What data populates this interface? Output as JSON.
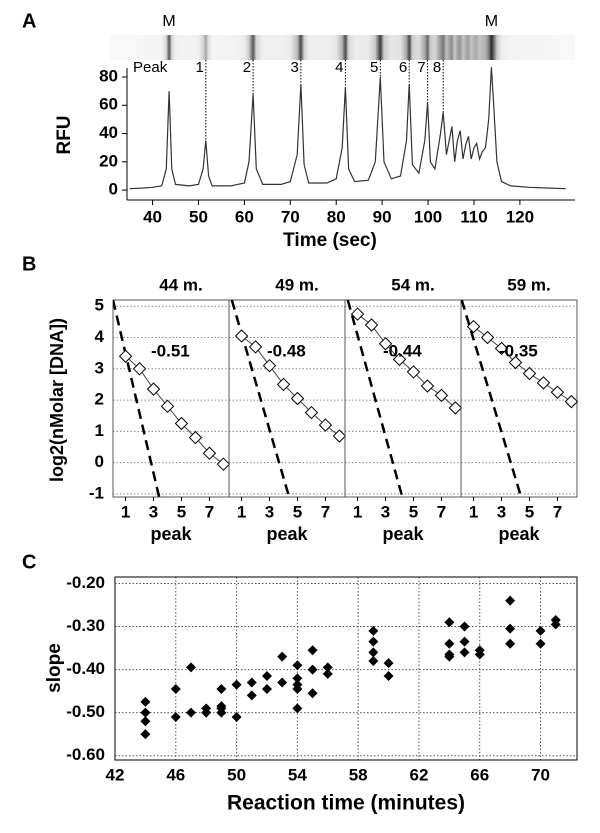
{
  "chart_data": [
    {
      "type": "line",
      "panel_label": "A",
      "xlabel": "Time (sec)",
      "ylabel": "RFU",
      "xlim": [
        34,
        132
      ],
      "xticks": [
        40,
        50,
        60,
        70,
        80,
        90,
        100,
        110,
        120
      ],
      "ylim": [
        -7,
        92
      ],
      "yticks": [
        0,
        20,
        40,
        60,
        80
      ],
      "color": "#333333",
      "x": [
        35,
        38,
        40,
        42,
        43,
        43.6,
        44.2,
        45,
        48,
        50,
        51,
        51.6,
        52.2,
        53,
        57,
        60,
        61,
        61.9,
        62.6,
        64,
        68,
        70,
        71.5,
        72.3,
        73,
        74,
        78,
        80,
        81.3,
        82,
        82.7,
        84,
        87,
        88.5,
        89.6,
        90.4,
        92,
        94,
        95.3,
        95.9,
        96.6,
        98,
        99.3,
        99.9,
        100.5,
        101.5,
        102.7,
        103.3,
        104,
        104.6,
        105.2,
        105.8,
        106.4,
        107,
        107.6,
        108.2,
        108.8,
        109.4,
        110,
        110.6,
        111.2,
        111.8,
        112.5,
        113.2,
        113.8,
        114.3,
        115,
        116,
        118,
        122,
        126,
        130
      ],
      "values": [
        1,
        1.5,
        2,
        3,
        15,
        70,
        15,
        4,
        3,
        4,
        15,
        35,
        10,
        3,
        3,
        5,
        20,
        68,
        15,
        4,
        4,
        6,
        25,
        75,
        18,
        5,
        5,
        8,
        30,
        73,
        15,
        6,
        7,
        20,
        80,
        20,
        8,
        10,
        35,
        75,
        18,
        12,
        35,
        62,
        20,
        15,
        40,
        55,
        25,
        35,
        45,
        20,
        35,
        42,
        22,
        32,
        38,
        22,
        30,
        33,
        22,
        27,
        30,
        50,
        87,
        60,
        20,
        6,
        3,
        2,
        1.5,
        1
      ],
      "markers": [
        {
          "text": "M",
          "x": 43.6
        },
        {
          "text": "M",
          "x": 113.8
        }
      ],
      "peak_label_title": "Peak",
      "peak_labels": [
        {
          "text": "1",
          "x": 51.6
        },
        {
          "text": "2",
          "x": 61.9
        },
        {
          "text": "3",
          "x": 72.3
        },
        {
          "text": "4",
          "x": 82
        },
        {
          "text": "5",
          "x": 89.6
        },
        {
          "text": "6",
          "x": 95.9
        },
        {
          "text": "7",
          "x": 99.9
        },
        {
          "text": "8",
          "x": 103.3
        }
      ]
    },
    {
      "type": "facet",
      "panel_label": "B",
      "xlabel": "peak",
      "ylabel": "log2(nMolar [DNA])",
      "xlim": [
        0.1,
        8.4
      ],
      "xticks": [
        1,
        3,
        5,
        7
      ],
      "ylim": [
        -1.1,
        5.2
      ],
      "yticks": [
        -1,
        0,
        1,
        2,
        3,
        4,
        5
      ],
      "grid": true,
      "panels": [
        {
          "title": "44 m.",
          "x": [
            1,
            2,
            3,
            4,
            5,
            6,
            7,
            8
          ],
          "values": [
            3.4,
            3.0,
            2.35,
            1.8,
            1.25,
            0.8,
            0.3,
            -0.05
          ],
          "slope_label": "-0.51",
          "reference_line": {
            "x": [
              0.1,
              3.4
            ],
            "y": [
              5.2,
              -1.1
            ]
          }
        },
        {
          "title": "49 m.",
          "x": [
            1,
            2,
            3,
            4,
            5,
            6,
            7,
            8
          ],
          "values": [
            4.05,
            3.7,
            3.1,
            2.5,
            2.05,
            1.6,
            1.2,
            0.85
          ],
          "slope_label": "-0.48",
          "reference_line": {
            "x": [
              0.3,
              4.4
            ],
            "y": [
              5.2,
              -1.1
            ]
          }
        },
        {
          "title": "54 m.",
          "x": [
            1,
            2,
            3,
            4,
            5,
            6,
            7,
            8
          ],
          "values": [
            4.75,
            4.4,
            3.8,
            3.3,
            2.9,
            2.45,
            2.15,
            1.75
          ],
          "slope_label": "-0.44",
          "reference_line": {
            "x": [
              0.3,
              4.2
            ],
            "y": [
              5.2,
              -1.1
            ]
          }
        },
        {
          "title": "59 m.",
          "x": [
            1,
            2,
            3,
            4,
            5,
            6,
            7,
            8
          ],
          "values": [
            4.35,
            4.0,
            3.65,
            3.2,
            2.85,
            2.55,
            2.25,
            1.95
          ],
          "slope_label": "-0.35",
          "reference_line": {
            "x": [
              0.15,
              4.4
            ],
            "y": [
              5.2,
              -1.1
            ]
          }
        }
      ]
    },
    {
      "type": "scatter",
      "panel_label": "C",
      "xlabel": "Reaction time (minutes)",
      "ylabel": "slope",
      "xlim": [
        42,
        72.4
      ],
      "xticks": [
        42,
        46,
        50,
        54,
        58,
        62,
        66,
        70
      ],
      "ylim": [
        -0.61,
        -0.185
      ],
      "yticks": [
        {
          "value": -0.2,
          "label": "-0.20"
        },
        {
          "value": -0.3,
          "label": "-0.30"
        },
        {
          "value": -0.4,
          "label": "-0.40"
        },
        {
          "value": -0.5,
          "label": "-0.50"
        },
        {
          "value": -0.6,
          "label": "-0.60"
        }
      ],
      "grid": true,
      "color": "#000000",
      "x": [
        44,
        44,
        44,
        44,
        46,
        46,
        47,
        47,
        48,
        48,
        49,
        49,
        49,
        49,
        50,
        50,
        51,
        51,
        52,
        52,
        53,
        53,
        54,
        54,
        54,
        54,
        54,
        55,
        55,
        55,
        56,
        56,
        59,
        59,
        59,
        59,
        60,
        60,
        64,
        64,
        64,
        64,
        65,
        65,
        65,
        66,
        66,
        68,
        68,
        68,
        70,
        70,
        71,
        71
      ],
      "values": [
        -0.475,
        -0.5,
        -0.52,
        -0.55,
        -0.445,
        -0.51,
        -0.395,
        -0.5,
        -0.49,
        -0.5,
        -0.445,
        -0.485,
        -0.49,
        -0.5,
        -0.435,
        -0.51,
        -0.43,
        -0.46,
        -0.415,
        -0.445,
        -0.37,
        -0.43,
        -0.39,
        -0.42,
        -0.435,
        -0.445,
        -0.49,
        -0.355,
        -0.4,
        -0.455,
        -0.395,
        -0.41,
        -0.31,
        -0.335,
        -0.36,
        -0.38,
        -0.385,
        -0.415,
        -0.29,
        -0.34,
        -0.365,
        -0.37,
        -0.3,
        -0.335,
        -0.36,
        -0.355,
        -0.365,
        -0.24,
        -0.305,
        -0.34,
        -0.31,
        -0.34,
        -0.285,
        -0.295
      ]
    }
  ]
}
